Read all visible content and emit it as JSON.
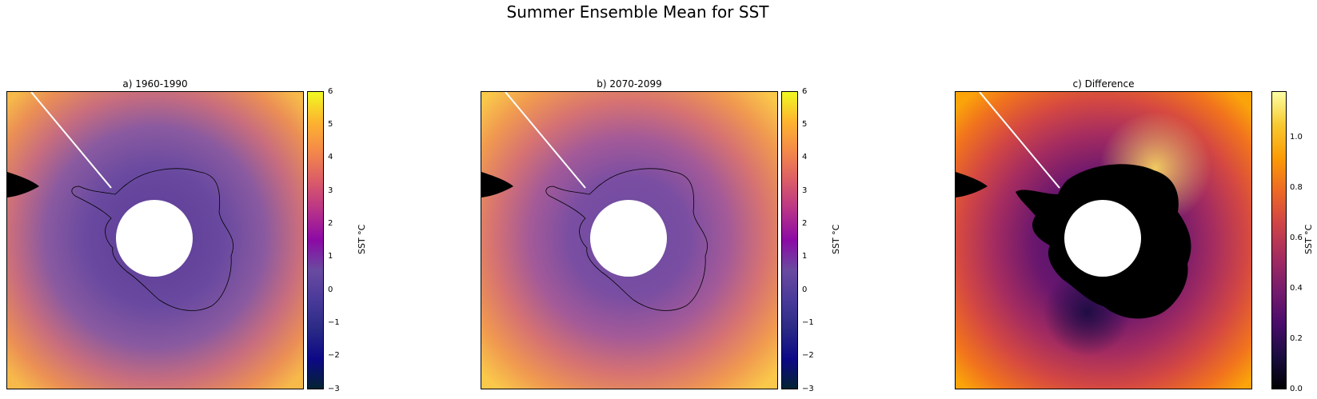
{
  "figure": {
    "title": "Summer Ensemble Mean for SST"
  },
  "panels": [
    {
      "title": "a) 1960-1990",
      "colorbar": {
        "label": "SST °C",
        "colormap": "plasma-like",
        "range": [
          -3,
          6
        ],
        "ticks": [
          "6",
          "5",
          "4",
          "3",
          "2",
          "1",
          "0",
          "−1",
          "−2",
          "−3"
        ]
      }
    },
    {
      "title": "b) 2070-2099",
      "colorbar": {
        "label": "SST °C",
        "colormap": "plasma-like",
        "range": [
          -3,
          6
        ],
        "ticks": [
          "6",
          "5",
          "4",
          "3",
          "2",
          "1",
          "0",
          "−1",
          "−2",
          "−3"
        ]
      }
    },
    {
      "title": "c) Difference",
      "colorbar": {
        "label": "SST °C",
        "colormap": "inferno",
        "range": [
          0,
          1.15
        ],
        "ticks": [
          "1.0",
          "0.8",
          "0.6",
          "0.4",
          "0.2",
          "0.0"
        ]
      }
    }
  ],
  "colors": {
    "land_mask": "#000000",
    "pole_hole": "#ffffff",
    "coastline": "#000000"
  }
}
